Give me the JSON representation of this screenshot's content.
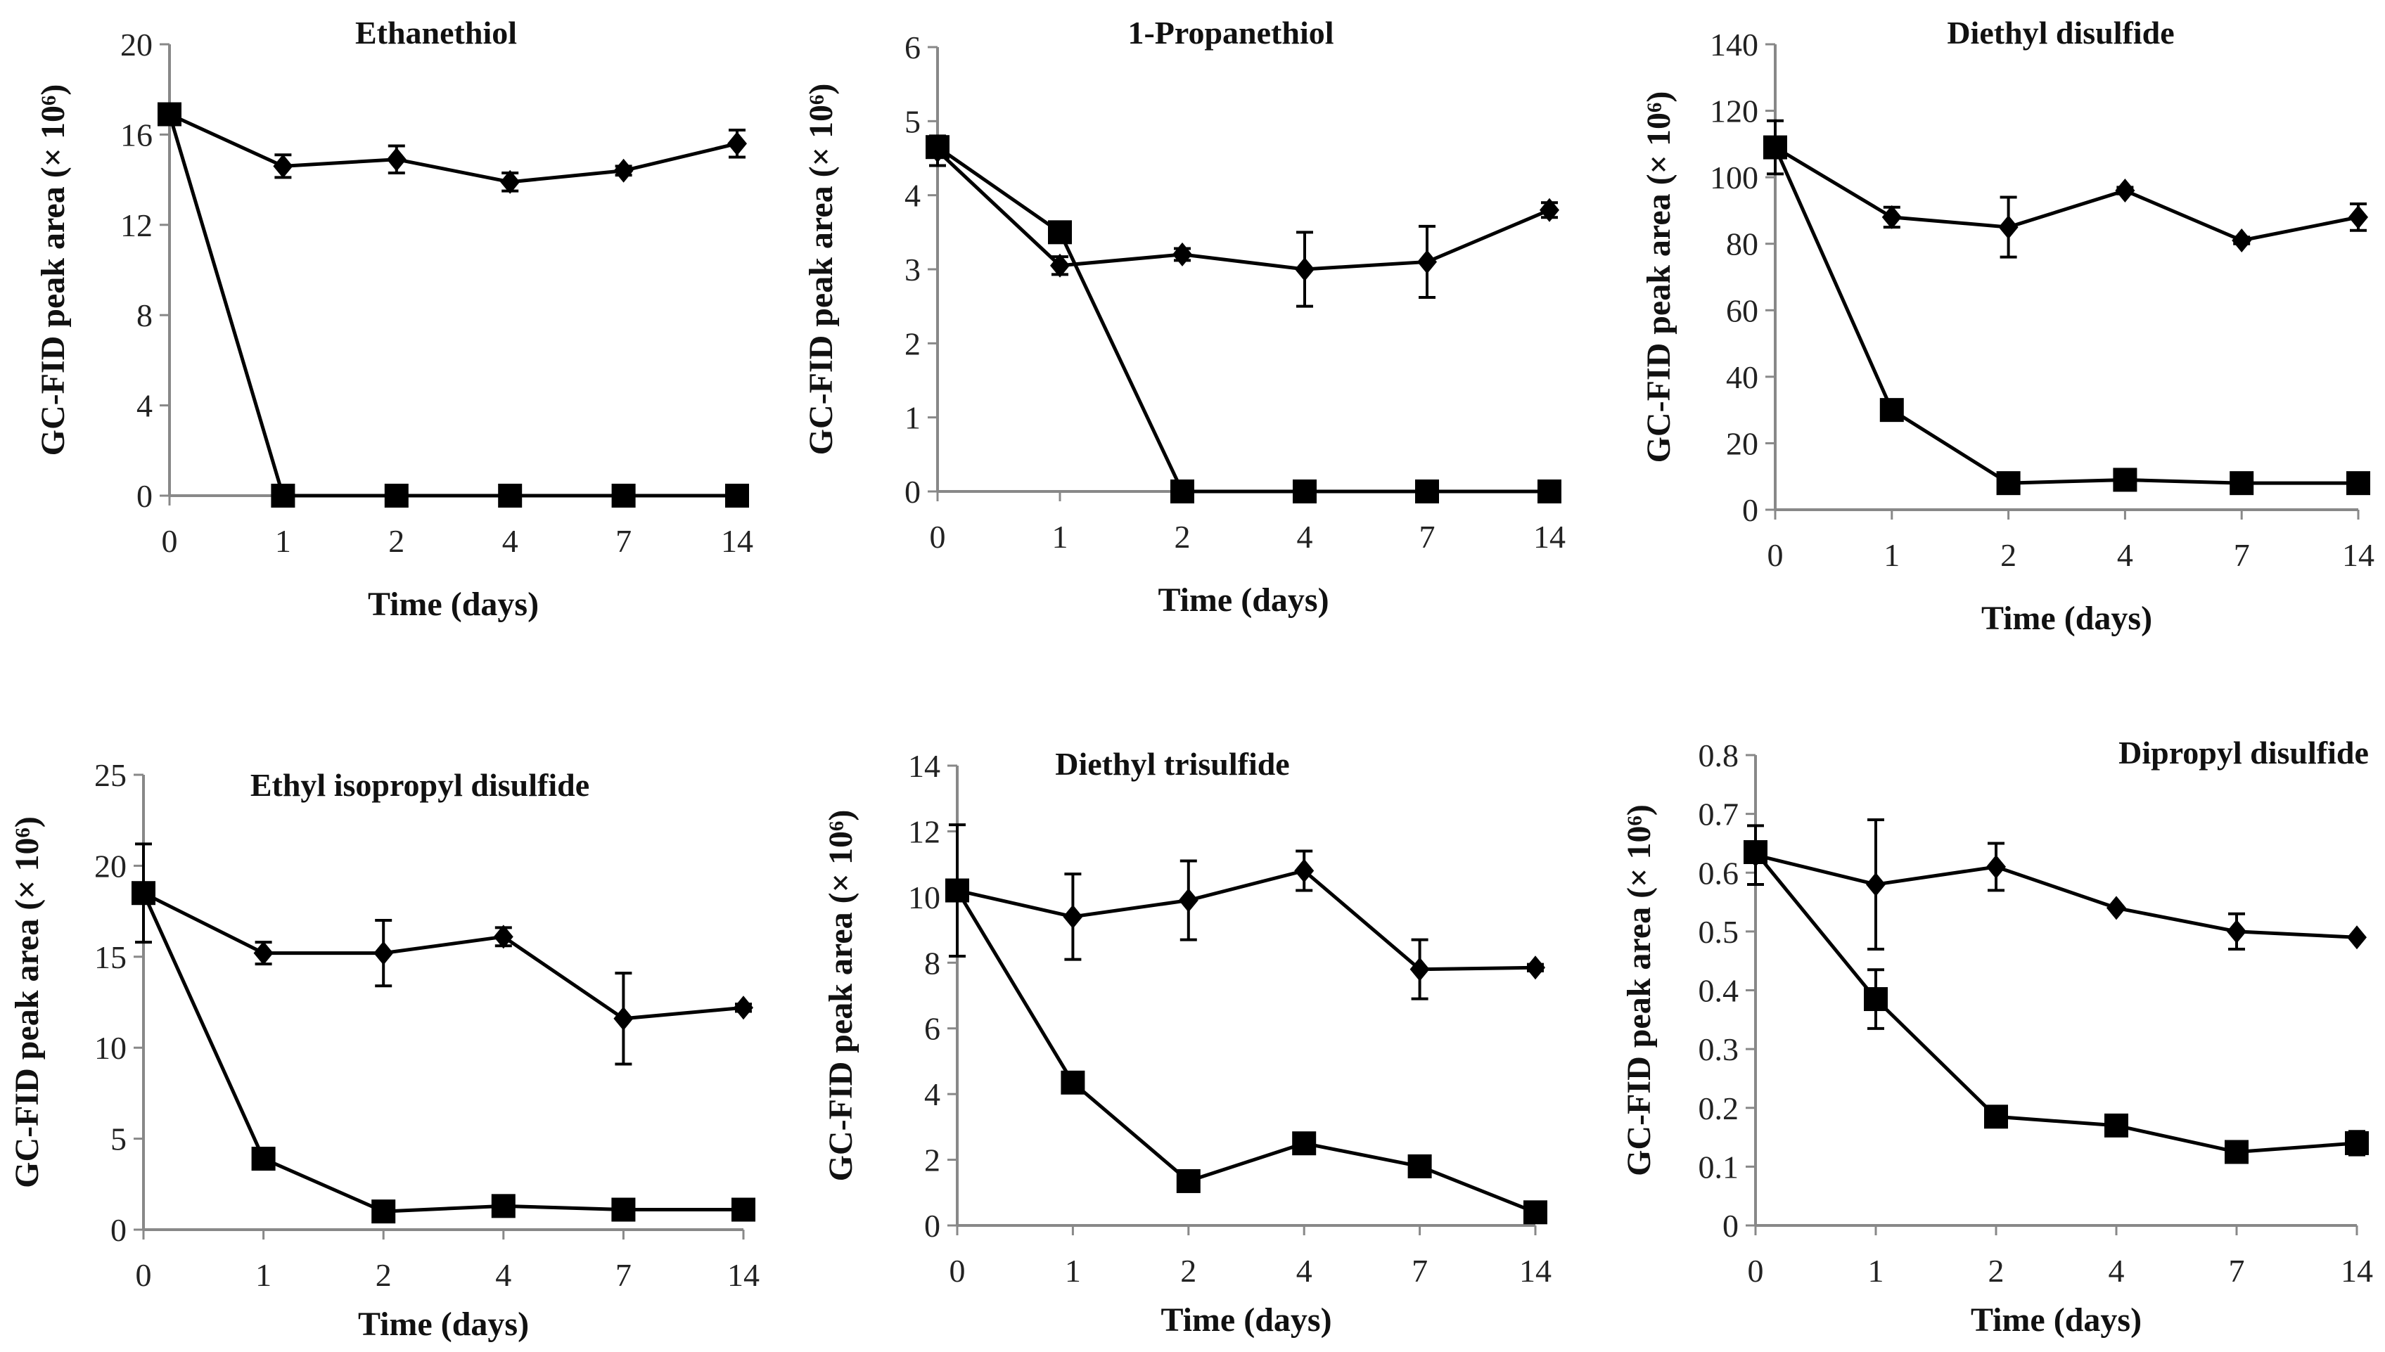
{
  "chart_data": [
    {
      "type": "line",
      "title": "Ethanethiol",
      "xlabel": "Time (days)",
      "ylabel": "GC-FID peak area (× 10⁶)",
      "categories": [
        "0",
        "1",
        "2",
        "4",
        "7",
        "14"
      ],
      "ylim": [
        0,
        20
      ],
      "yticks": [
        0,
        4,
        8,
        12,
        16,
        20
      ],
      "grid": false,
      "series": [
        {
          "name": "diamond",
          "marker": "diamond",
          "values": [
            16.9,
            14.6,
            14.9,
            13.9,
            14.4,
            15.6
          ],
          "errors": [
            0,
            0.5,
            0.6,
            0.4,
            0.2,
            0.6
          ]
        },
        {
          "name": "square",
          "marker": "square",
          "values": [
            16.9,
            0,
            0,
            0,
            0,
            0
          ],
          "errors": [
            0,
            0,
            0,
            0,
            0,
            0
          ]
        }
      ]
    },
    {
      "type": "line",
      "title": "1-Propanethiol",
      "xlabel": "Time (days)",
      "ylabel": "GC-FID peak area (× 10⁶)",
      "categories": [
        "0",
        "1",
        "2",
        "4",
        "7",
        "14"
      ],
      "ylim": [
        0,
        6
      ],
      "yticks": [
        0,
        1,
        2,
        3,
        4,
        5,
        6
      ],
      "grid": false,
      "series": [
        {
          "name": "diamond",
          "marker": "diamond",
          "values": [
            4.6,
            3.05,
            3.2,
            3.0,
            3.1,
            3.8
          ],
          "errors": [
            0.2,
            0.12,
            0.08,
            0.5,
            0.48,
            0.1
          ]
        },
        {
          "name": "square",
          "marker": "square",
          "values": [
            4.65,
            3.5,
            0,
            0,
            0,
            0
          ],
          "errors": [
            0,
            0,
            0,
            0,
            0,
            0
          ]
        }
      ]
    },
    {
      "type": "line",
      "title": "Diethyl disulfide",
      "xlabel": "Time (days)",
      "ylabel": "GC-FID peak area (× 10⁶)",
      "categories": [
        "0",
        "1",
        "2",
        "4",
        "7",
        "14"
      ],
      "ylim": [
        0,
        140
      ],
      "yticks": [
        0,
        20,
        40,
        60,
        80,
        100,
        120,
        140
      ],
      "grid": false,
      "series": [
        {
          "name": "diamond",
          "marker": "diamond",
          "values": [
            109,
            88,
            85,
            96,
            81,
            88
          ],
          "errors": [
            8,
            3,
            9,
            1,
            1,
            4
          ]
        },
        {
          "name": "square",
          "marker": "square",
          "values": [
            109,
            30,
            8,
            9,
            8,
            8
          ],
          "errors": [
            0,
            0,
            0,
            0,
            0,
            0
          ]
        }
      ]
    },
    {
      "type": "line",
      "title": "Ethyl isopropyl disulfide",
      "xlabel": "Time (days)",
      "ylabel": "GC-FID peak area (× 10⁶)",
      "categories": [
        "0",
        "1",
        "2",
        "4",
        "7",
        "14"
      ],
      "ylim": [
        0,
        25
      ],
      "yticks": [
        0,
        5,
        10,
        15,
        20,
        25
      ],
      "grid": false,
      "series": [
        {
          "name": "diamond",
          "marker": "diamond",
          "values": [
            18.5,
            15.2,
            15.2,
            16.1,
            11.6,
            12.2
          ],
          "errors": [
            2.7,
            0.6,
            1.8,
            0.5,
            2.5,
            0.2
          ]
        },
        {
          "name": "square",
          "marker": "square",
          "values": [
            18.5,
            3.9,
            1.0,
            1.3,
            1.1,
            1.1
          ],
          "errors": [
            0,
            0,
            0,
            0,
            0,
            0
          ]
        }
      ]
    },
    {
      "type": "line",
      "title": "Diethyl trisulfide",
      "xlabel": "Time (days)",
      "ylabel": "GC-FID peak area (× 10⁶)",
      "categories": [
        "0",
        "1",
        "2",
        "4",
        "7",
        "14"
      ],
      "ylim": [
        0,
        14
      ],
      "yticks": [
        0,
        2,
        4,
        6,
        8,
        10,
        12,
        14
      ],
      "grid": false,
      "series": [
        {
          "name": "diamond",
          "marker": "diamond",
          "values": [
            10.2,
            9.4,
            9.9,
            10.8,
            7.8,
            7.85
          ],
          "errors": [
            2.0,
            1.3,
            1.2,
            0.6,
            0.9,
            0.1
          ]
        },
        {
          "name": "square",
          "marker": "square",
          "values": [
            10.2,
            4.35,
            1.35,
            2.5,
            1.8,
            0.4
          ],
          "errors": [
            0,
            0,
            0,
            0,
            0,
            0
          ]
        }
      ]
    },
    {
      "type": "line",
      "title": "Dipropyl disulfide",
      "xlabel": "Time (days)",
      "ylabel": "GC-FID peak area (× 10⁶)",
      "categories": [
        "0",
        "1",
        "2",
        "4",
        "7",
        "14"
      ],
      "ylim": [
        0,
        0.8
      ],
      "yticks": [
        "0",
        "0.1",
        "0.2",
        "0.3",
        "0.4",
        "0.5",
        "0.6",
        "0.7",
        "0.8"
      ],
      "grid": false,
      "series": [
        {
          "name": "diamond",
          "marker": "diamond",
          "values": [
            0.63,
            0.58,
            0.61,
            0.54,
            0.5,
            0.49
          ],
          "errors": [
            0.05,
            0.11,
            0.04,
            0,
            0.03,
            0
          ]
        },
        {
          "name": "square",
          "marker": "square",
          "values": [
            0.635,
            0.385,
            0.185,
            0.17,
            0.125,
            0.14
          ],
          "errors": [
            0,
            0.05,
            0,
            0,
            0,
            0.02
          ]
        }
      ]
    }
  ]
}
